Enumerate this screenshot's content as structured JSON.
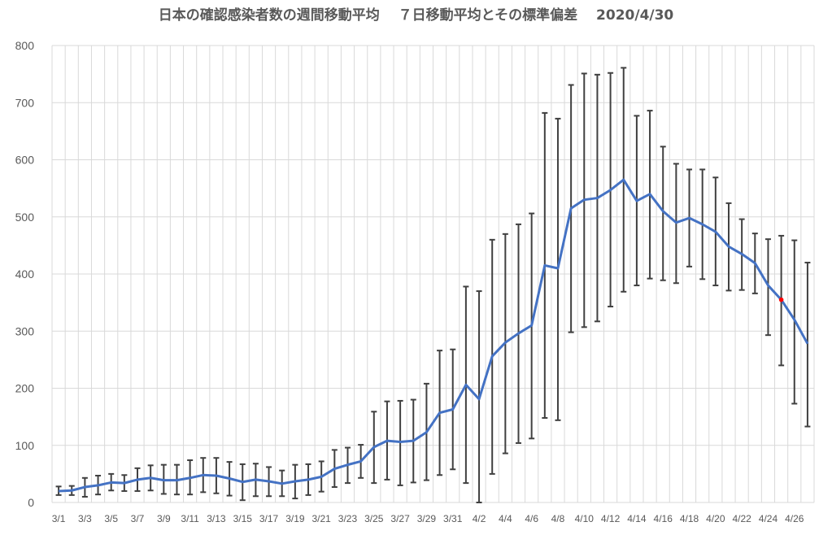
{
  "chart_data": {
    "type": "line",
    "title": "日本の確認感染者数の週間移動平均　 ７日移動平均とその標準偏差　 2020/4/30",
    "xlabel": "",
    "ylabel": "",
    "ylim": [
      0,
      800
    ],
    "yticks": [
      0,
      100,
      200,
      300,
      400,
      500,
      600,
      700,
      800
    ],
    "grid": true,
    "legend": "none",
    "categories": [
      "3/1",
      "3/2",
      "3/3",
      "3/4",
      "3/5",
      "3/6",
      "3/7",
      "3/8",
      "3/9",
      "3/10",
      "3/11",
      "3/12",
      "3/13",
      "3/14",
      "3/15",
      "3/16",
      "3/17",
      "3/18",
      "3/19",
      "3/20",
      "3/21",
      "3/22",
      "3/23",
      "3/24",
      "3/25",
      "3/26",
      "3/27",
      "3/28",
      "3/29",
      "3/30",
      "3/31",
      "4/1",
      "4/2",
      "4/3",
      "4/4",
      "4/5",
      "4/6",
      "4/7",
      "4/8",
      "4/9",
      "4/10",
      "4/11",
      "4/12",
      "4/13",
      "4/14",
      "4/15",
      "4/16",
      "4/17",
      "4/18",
      "4/19",
      "4/20",
      "4/21",
      "4/22",
      "4/23",
      "4/24",
      "4/25",
      "4/26",
      "4/27"
    ],
    "xtick_labels": [
      "3/1",
      "3/3",
      "3/5",
      "3/7",
      "3/9",
      "3/11",
      "3/13",
      "3/15",
      "3/17",
      "3/19",
      "3/21",
      "3/23",
      "3/25",
      "3/27",
      "3/29",
      "3/31",
      "4/2",
      "4/4",
      "4/6",
      "4/8",
      "4/10",
      "4/12",
      "4/14",
      "4/16",
      "4/18",
      "4/20",
      "4/22",
      "4/24",
      "4/26"
    ],
    "values": [
      20,
      21,
      27,
      30,
      35,
      34,
      40,
      43,
      39,
      39,
      43,
      48,
      47,
      42,
      36,
      40,
      37,
      33,
      37,
      40,
      45,
      59,
      66,
      72,
      97,
      108,
      106,
      108,
      123,
      157,
      163,
      206,
      181,
      256,
      280,
      296,
      310,
      415,
      410,
      515,
      530,
      533,
      547,
      565,
      528,
      540,
      510,
      490,
      498,
      487,
      474,
      448,
      435,
      419,
      380,
      355,
      320,
      278
    ],
    "err_upper": [
      28,
      29,
      43,
      47,
      50,
      48,
      60,
      65,
      66,
      66,
      74,
      78,
      78,
      71,
      67,
      68,
      62,
      56,
      66,
      67,
      72,
      92,
      96,
      101,
      159,
      177,
      178,
      180,
      208,
      266,
      268,
      378,
      370,
      460,
      470,
      487,
      506,
      682,
      672,
      731,
      751,
      749,
      752,
      761,
      677,
      686,
      623,
      593,
      583,
      583,
      569,
      524,
      496,
      471,
      461,
      467,
      459,
      420
    ],
    "err_lower": [
      13,
      13,
      10,
      14,
      21,
      20,
      20,
      21,
      15,
      14,
      14,
      18,
      16,
      12,
      4,
      11,
      11,
      11,
      7,
      13,
      19,
      27,
      34,
      43,
      34,
      40,
      30,
      35,
      39,
      48,
      58,
      34,
      0,
      50,
      86,
      104,
      112,
      148,
      144,
      298,
      307,
      317,
      343,
      369,
      380,
      392,
      389,
      384,
      413,
      391,
      380,
      371,
      372,
      366,
      293,
      240,
      173,
      133
    ],
    "highlight": {
      "category": "4/25",
      "value": 355,
      "color": "#ff0000"
    },
    "colors": {
      "line": "#4472c4",
      "error_bar": "#404040",
      "grid": "#d9d9d9",
      "text": "#595959"
    }
  }
}
